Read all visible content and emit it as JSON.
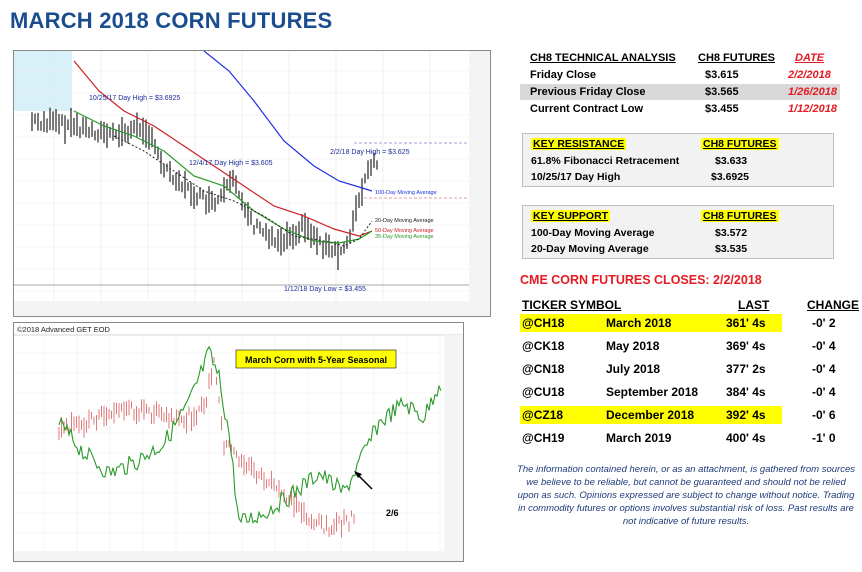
{
  "page_title": "MARCH 2018 CORN FUTURES",
  "tech_analysis": {
    "headers": [
      "CH8 TECHNICAL ANALYSIS",
      "CH8 FUTURES",
      "DATE"
    ],
    "rows": [
      {
        "label": "Friday Close",
        "value": "$3.615",
        "date": "2/2/2018"
      },
      {
        "label": "Previous Friday Close",
        "value": "$3.565",
        "date": "1/26/2018"
      },
      {
        "label": "Current Contract Low",
        "value": "$3.455",
        "date": "1/12/2018"
      }
    ]
  },
  "resistance": {
    "headers": [
      "KEY RESISTANCE",
      "CH8 FUTURES"
    ],
    "rows": [
      {
        "label": "61.8% Fibonacci Retracement",
        "value": "$3.633"
      },
      {
        "label": "10/25/17 Day High",
        "value": "$3.6925"
      }
    ]
  },
  "support": {
    "headers": [
      "KEY SUPPORT",
      "CH8 FUTURES"
    ],
    "rows": [
      {
        "label": "100-Day Moving Average",
        "value": "$3.572"
      },
      {
        "label": "20-Day Moving Average",
        "value": "$3.535"
      }
    ]
  },
  "closes": {
    "title": "CME CORN FUTURES CLOSES:  2/2/2018",
    "headers": [
      "TICKER SYMBOL",
      "LAST",
      "CHANGE"
    ],
    "rows": [
      {
        "ticker": "@CH18",
        "month": "March 2018",
        "last": "361' 4s",
        "change": "-0' 2",
        "highlight": true
      },
      {
        "ticker": "@CK18",
        "month": "May 2018",
        "last": "369' 4s",
        "change": "-0' 4",
        "highlight": false
      },
      {
        "ticker": "@CN18",
        "month": "July 2018",
        "last": "377' 2s",
        "change": "-0' 4",
        "highlight": false
      },
      {
        "ticker": "@CU18",
        "month": "September 2018",
        "last": "384' 4s",
        "change": "-0' 4",
        "highlight": false
      },
      {
        "ticker": "@CZ18",
        "month": "December 2018",
        "last": "392' 4s",
        "change": "-0' 6",
        "highlight": true
      },
      {
        "ticker": "@CH19",
        "month": "March 2019",
        "last": "400' 4s",
        "change": "-1' 0",
        "highlight": false
      }
    ]
  },
  "disclaimer": "The information contained herein, or as an attachment, is gathered from sources we believe to be reliable, but cannot be guaranteed and should not be relied upon as such. Opinions expressed are subject to change without notice. Trading in commodity futures or options involves substantial risk of loss. Past results are not indicative of future results.",
  "chart_top": {
    "annotations": {
      "high_1025": "10/25/17 Day High = $3.6925",
      "high_124": "12/4/17 Day High = $3.605",
      "high_22": "2/2/18 Day High = $3.625",
      "ma100": "100-Day Moving Average",
      "ma20": "20-Day Moving Average",
      "ma50": "50-Day Moving Average",
      "ma35": "35-Day Moving Average",
      "low": "1/12/18 Day Low = $3.455"
    },
    "colors": {
      "ma100": "#2030e0",
      "ma50": "#cc2020",
      "ma35": "#2a9a2a",
      "ma20": "#222222",
      "bars": "#111111"
    }
  },
  "chart_bottom": {
    "header": "©2018 Advanced GET EOD",
    "legend": "March Corn with 5-Year Seasonal",
    "arrow_label": "2/6",
    "colors": {
      "seasonal": "#2a9a2a",
      "price": "#e07a7a",
      "legend_bg": "#ffff00"
    }
  }
}
